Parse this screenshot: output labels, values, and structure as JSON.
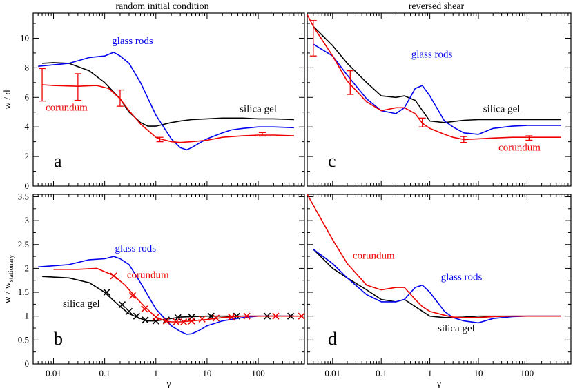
{
  "titles": {
    "left": "random initial condition",
    "right": "reversed shear"
  },
  "colors": {
    "silica": "#000000",
    "glass": "#0000ee",
    "corundum": "#ee0000"
  },
  "chart_data": [
    {
      "panel": "a",
      "type": "line",
      "xscale": "log",
      "xlim": [
        0.004,
        800
      ],
      "ylim": [
        0,
        11.7
      ],
      "yticks": [
        0,
        2,
        4,
        6,
        8,
        10
      ],
      "ylabel": "w / d",
      "xlabel": "",
      "series": [
        {
          "name": "silica gel",
          "color": "#000000",
          "label_x": 100,
          "label_y": 5.0,
          "x": [
            0.006,
            0.01,
            0.02,
            0.05,
            0.1,
            0.2,
            0.3,
            0.5,
            0.7,
            1,
            2,
            3,
            5,
            10,
            20,
            50,
            100,
            200,
            500
          ],
          "y": [
            8.3,
            8.35,
            8.3,
            7.8,
            7.0,
            5.9,
            5.0,
            4.3,
            4.05,
            4.05,
            4.3,
            4.4,
            4.5,
            4.55,
            4.6,
            4.6,
            4.55,
            4.55,
            4.5
          ]
        },
        {
          "name": "glass rods",
          "color": "#0000ee",
          "label_x": 0.35,
          "label_y": 9.6,
          "x": [
            0.005,
            0.01,
            0.02,
            0.05,
            0.1,
            0.15,
            0.2,
            0.3,
            0.5,
            1,
            2,
            3,
            4,
            5,
            7,
            10,
            20,
            30,
            50,
            100,
            200,
            500
          ],
          "y": [
            8.1,
            8.2,
            8.3,
            8.7,
            8.8,
            9.05,
            8.8,
            8.3,
            7.0,
            4.8,
            3.2,
            2.6,
            2.45,
            2.6,
            2.9,
            3.2,
            3.6,
            3.8,
            3.9,
            4.0,
            4.0,
            3.95
          ]
        },
        {
          "name": "corundum",
          "color": "#ee0000",
          "label_x": 0.018,
          "label_y": 5.1,
          "x": [
            0.006,
            0.01,
            0.03,
            0.07,
            0.12,
            0.2,
            0.3,
            0.5,
            1,
            1.2,
            2,
            3,
            5,
            10,
            20,
            50,
            100,
            200,
            500
          ],
          "y": [
            6.85,
            6.8,
            6.75,
            6.8,
            6.6,
            5.9,
            5.1,
            4.2,
            3.3,
            3.2,
            3.0,
            2.95,
            3.0,
            3.1,
            3.3,
            3.4,
            3.45,
            3.45,
            3.4
          ],
          "errorbars": [
            {
              "x": 0.006,
              "y": 6.85,
              "err": 1.1
            },
            {
              "x": 0.03,
              "y": 6.7,
              "err": 0.9
            },
            {
              "x": 0.2,
              "y": 5.95,
              "err": 0.55
            },
            {
              "x": 1.2,
              "y": 3.15,
              "err": 0.15
            },
            {
              "x": 120,
              "y": 3.5,
              "err": 0.12
            }
          ]
        }
      ]
    },
    {
      "panel": "c",
      "type": "line",
      "xscale": "log",
      "xlim": [
        0.003,
        800
      ],
      "ylim": [
        0,
        11.7
      ],
      "yticks": [
        0,
        2,
        4,
        6,
        8,
        10
      ],
      "ylabel": "",
      "xlabel": "",
      "series": [
        {
          "name": "silica gel",
          "color": "#000000",
          "label_x": 30,
          "label_y": 5.0,
          "x": [
            0.004,
            0.01,
            0.02,
            0.05,
            0.1,
            0.2,
            0.3,
            0.5,
            1,
            2,
            5,
            10,
            20,
            50,
            100,
            200,
            500
          ],
          "y": [
            10.8,
            9.5,
            8.3,
            7.0,
            6.1,
            6.0,
            6.1,
            5.8,
            4.4,
            4.3,
            4.45,
            4.5,
            4.5,
            4.5,
            4.5,
            4.5,
            4.5
          ]
        },
        {
          "name": "glass rods",
          "color": "#0000ee",
          "label_x": 1.1,
          "label_y": 8.7,
          "x": [
            0.004,
            0.01,
            0.02,
            0.05,
            0.1,
            0.2,
            0.3,
            0.5,
            0.7,
            1,
            2,
            3,
            5,
            10,
            20,
            50,
            100,
            200,
            500
          ],
          "y": [
            9.6,
            8.8,
            7.5,
            5.9,
            5.1,
            4.9,
            5.3,
            6.6,
            6.8,
            6.1,
            4.4,
            4.0,
            3.6,
            3.5,
            3.9,
            4.05,
            4.1,
            4.1,
            4.1
          ]
        },
        {
          "name": "corundum",
          "color": "#ee0000",
          "label_x": 70,
          "label_y": 2.4,
          "x": [
            0.003,
            0.004,
            0.01,
            0.02,
            0.05,
            0.1,
            0.2,
            0.3,
            0.5,
            0.7,
            1,
            2,
            3,
            5,
            10,
            20,
            50,
            100,
            200,
            500
          ],
          "y": [
            11.6,
            10.8,
            8.8,
            7.1,
            5.7,
            5.1,
            5.3,
            5.3,
            4.9,
            4.25,
            3.9,
            3.5,
            3.3,
            3.15,
            3.2,
            3.25,
            3.3,
            3.3,
            3.3,
            3.3
          ],
          "errorbars": [
            {
              "x": 0.004,
              "y": 10.0,
              "err": 1.2
            },
            {
              "x": 0.023,
              "y": 7.0,
              "err": 0.8
            },
            {
              "x": 0.7,
              "y": 4.3,
              "err": 0.3
            },
            {
              "x": 5,
              "y": 3.15,
              "err": 0.2
            },
            {
              "x": 110,
              "y": 3.25,
              "err": 0.15
            }
          ]
        }
      ]
    },
    {
      "panel": "b",
      "type": "line",
      "xscale": "log",
      "xlim": [
        0.004,
        800
      ],
      "ylim": [
        0,
        3.55
      ],
      "yticks": [
        0,
        0.5,
        1,
        1.5,
        2,
        2.5,
        3,
        3.5
      ],
      "ylabel": "w / w",
      "ylabel_sub": "stationary",
      "xlabel": "γ",
      "xtick_labels": [
        "0.01",
        "0.1",
        "1",
        "10",
        "100"
      ],
      "series": [
        {
          "name": "silica gel",
          "color": "#000000",
          "label_x": 0.035,
          "label_y": 1.2,
          "x": [
            0.006,
            0.02,
            0.05,
            0.1,
            0.2,
            0.3,
            0.5,
            0.7,
            1,
            2,
            3,
            5,
            10,
            20,
            50,
            100,
            200,
            500
          ],
          "y": [
            1.83,
            1.8,
            1.7,
            1.5,
            1.2,
            1.05,
            0.95,
            0.9,
            0.9,
            0.95,
            0.98,
            0.99,
            1.0,
            1.0,
            1.0,
            1.0,
            1.0,
            1.0
          ],
          "markers": [
            0.11,
            0.22,
            0.3,
            0.42,
            0.62,
            1.0,
            1.6,
            2.7,
            5.0,
            12,
            38,
            150,
            430
          ],
          "marker_y": [
            1.5,
            1.24,
            1.1,
            1.0,
            0.92,
            0.9,
            0.92,
            0.97,
            0.98,
            1.0,
            1.0,
            1.0,
            1.0
          ]
        },
        {
          "name": "glass rods",
          "color": "#0000ee",
          "label_x": 0.4,
          "label_y": 2.35,
          "x": [
            0.005,
            0.02,
            0.05,
            0.1,
            0.15,
            0.2,
            0.3,
            0.5,
            1,
            2,
            3,
            4,
            5,
            7,
            10,
            20,
            50,
            100,
            200,
            500
          ],
          "y": [
            2.03,
            2.08,
            2.18,
            2.2,
            2.25,
            2.2,
            2.08,
            1.7,
            1.15,
            0.8,
            0.68,
            0.62,
            0.63,
            0.7,
            0.8,
            0.9,
            0.97,
            1.0,
            1.0,
            1.0
          ]
        },
        {
          "name": "corundum",
          "color": "#ee0000",
          "label_x": 0.7,
          "label_y": 1.8,
          "x": [
            0.01,
            0.03,
            0.07,
            0.15,
            0.25,
            0.4,
            0.6,
            1,
            1.5,
            2,
            3,
            5,
            10,
            20,
            50,
            100,
            200,
            500,
            700
          ],
          "y": [
            1.98,
            1.98,
            2.0,
            1.85,
            1.65,
            1.4,
            1.2,
            0.98,
            0.9,
            0.88,
            0.88,
            0.9,
            0.93,
            0.97,
            1.0,
            1.0,
            1.0,
            1.0,
            1.0
          ],
          "markers": [
            0.15,
            0.35,
            0.6,
            1.0,
            1.6,
            2.5,
            3.5,
            5,
            8,
            15,
            30,
            60,
            220,
            700
          ],
          "marker_y": [
            1.84,
            1.43,
            1.15,
            0.98,
            0.9,
            0.88,
            0.88,
            0.9,
            0.94,
            0.96,
            0.98,
            1.0,
            1.0,
            1.0
          ]
        }
      ]
    },
    {
      "panel": "d",
      "type": "line",
      "xscale": "log",
      "xlim": [
        0.003,
        800
      ],
      "ylim": [
        0,
        3.55
      ],
      "yticks": [
        0,
        0.5,
        1,
        1.5,
        2,
        2.5,
        3,
        3.5
      ],
      "ylabel": "",
      "xlabel": "γ",
      "xtick_labels": [
        "0.01",
        "0.1",
        "1",
        "10",
        "100"
      ],
      "series": [
        {
          "name": "silica gel",
          "color": "#000000",
          "label_x": 3.5,
          "label_y": 0.68,
          "x": [
            0.004,
            0.01,
            0.02,
            0.05,
            0.1,
            0.2,
            0.3,
            0.5,
            1,
            2,
            5,
            10,
            20,
            50,
            100,
            200,
            500
          ],
          "y": [
            2.4,
            2.0,
            1.8,
            1.55,
            1.35,
            1.3,
            1.35,
            1.2,
            1.0,
            0.97,
            0.98,
            1.0,
            1.0,
            1.0,
            1.0,
            1.0,
            1.0
          ]
        },
        {
          "name": "glass rods",
          "color": "#0000ee",
          "label_x": 4.5,
          "label_y": 1.75,
          "x": [
            0.004,
            0.01,
            0.02,
            0.05,
            0.1,
            0.2,
            0.3,
            0.5,
            0.7,
            1,
            2,
            3,
            5,
            10,
            20,
            50,
            100,
            200,
            500
          ],
          "y": [
            2.4,
            2.1,
            1.8,
            1.45,
            1.3,
            1.3,
            1.35,
            1.6,
            1.65,
            1.5,
            1.1,
            0.97,
            0.9,
            0.86,
            0.95,
            0.99,
            1.0,
            1.0,
            1.0
          ]
        },
        {
          "name": "corundum",
          "color": "#ee0000",
          "label_x": 0.07,
          "label_y": 2.2,
          "x": [
            0.003,
            0.01,
            0.02,
            0.05,
            0.1,
            0.2,
            0.3,
            0.5,
            0.7,
            1,
            2,
            3,
            5,
            10,
            20,
            50,
            100,
            200,
            500
          ],
          "y": [
            3.55,
            2.6,
            2.1,
            1.65,
            1.55,
            1.6,
            1.6,
            1.35,
            1.2,
            1.1,
            1.02,
            0.98,
            0.97,
            0.97,
            0.99,
            1.0,
            1.0,
            1.0,
            1.0
          ]
        }
      ]
    }
  ]
}
